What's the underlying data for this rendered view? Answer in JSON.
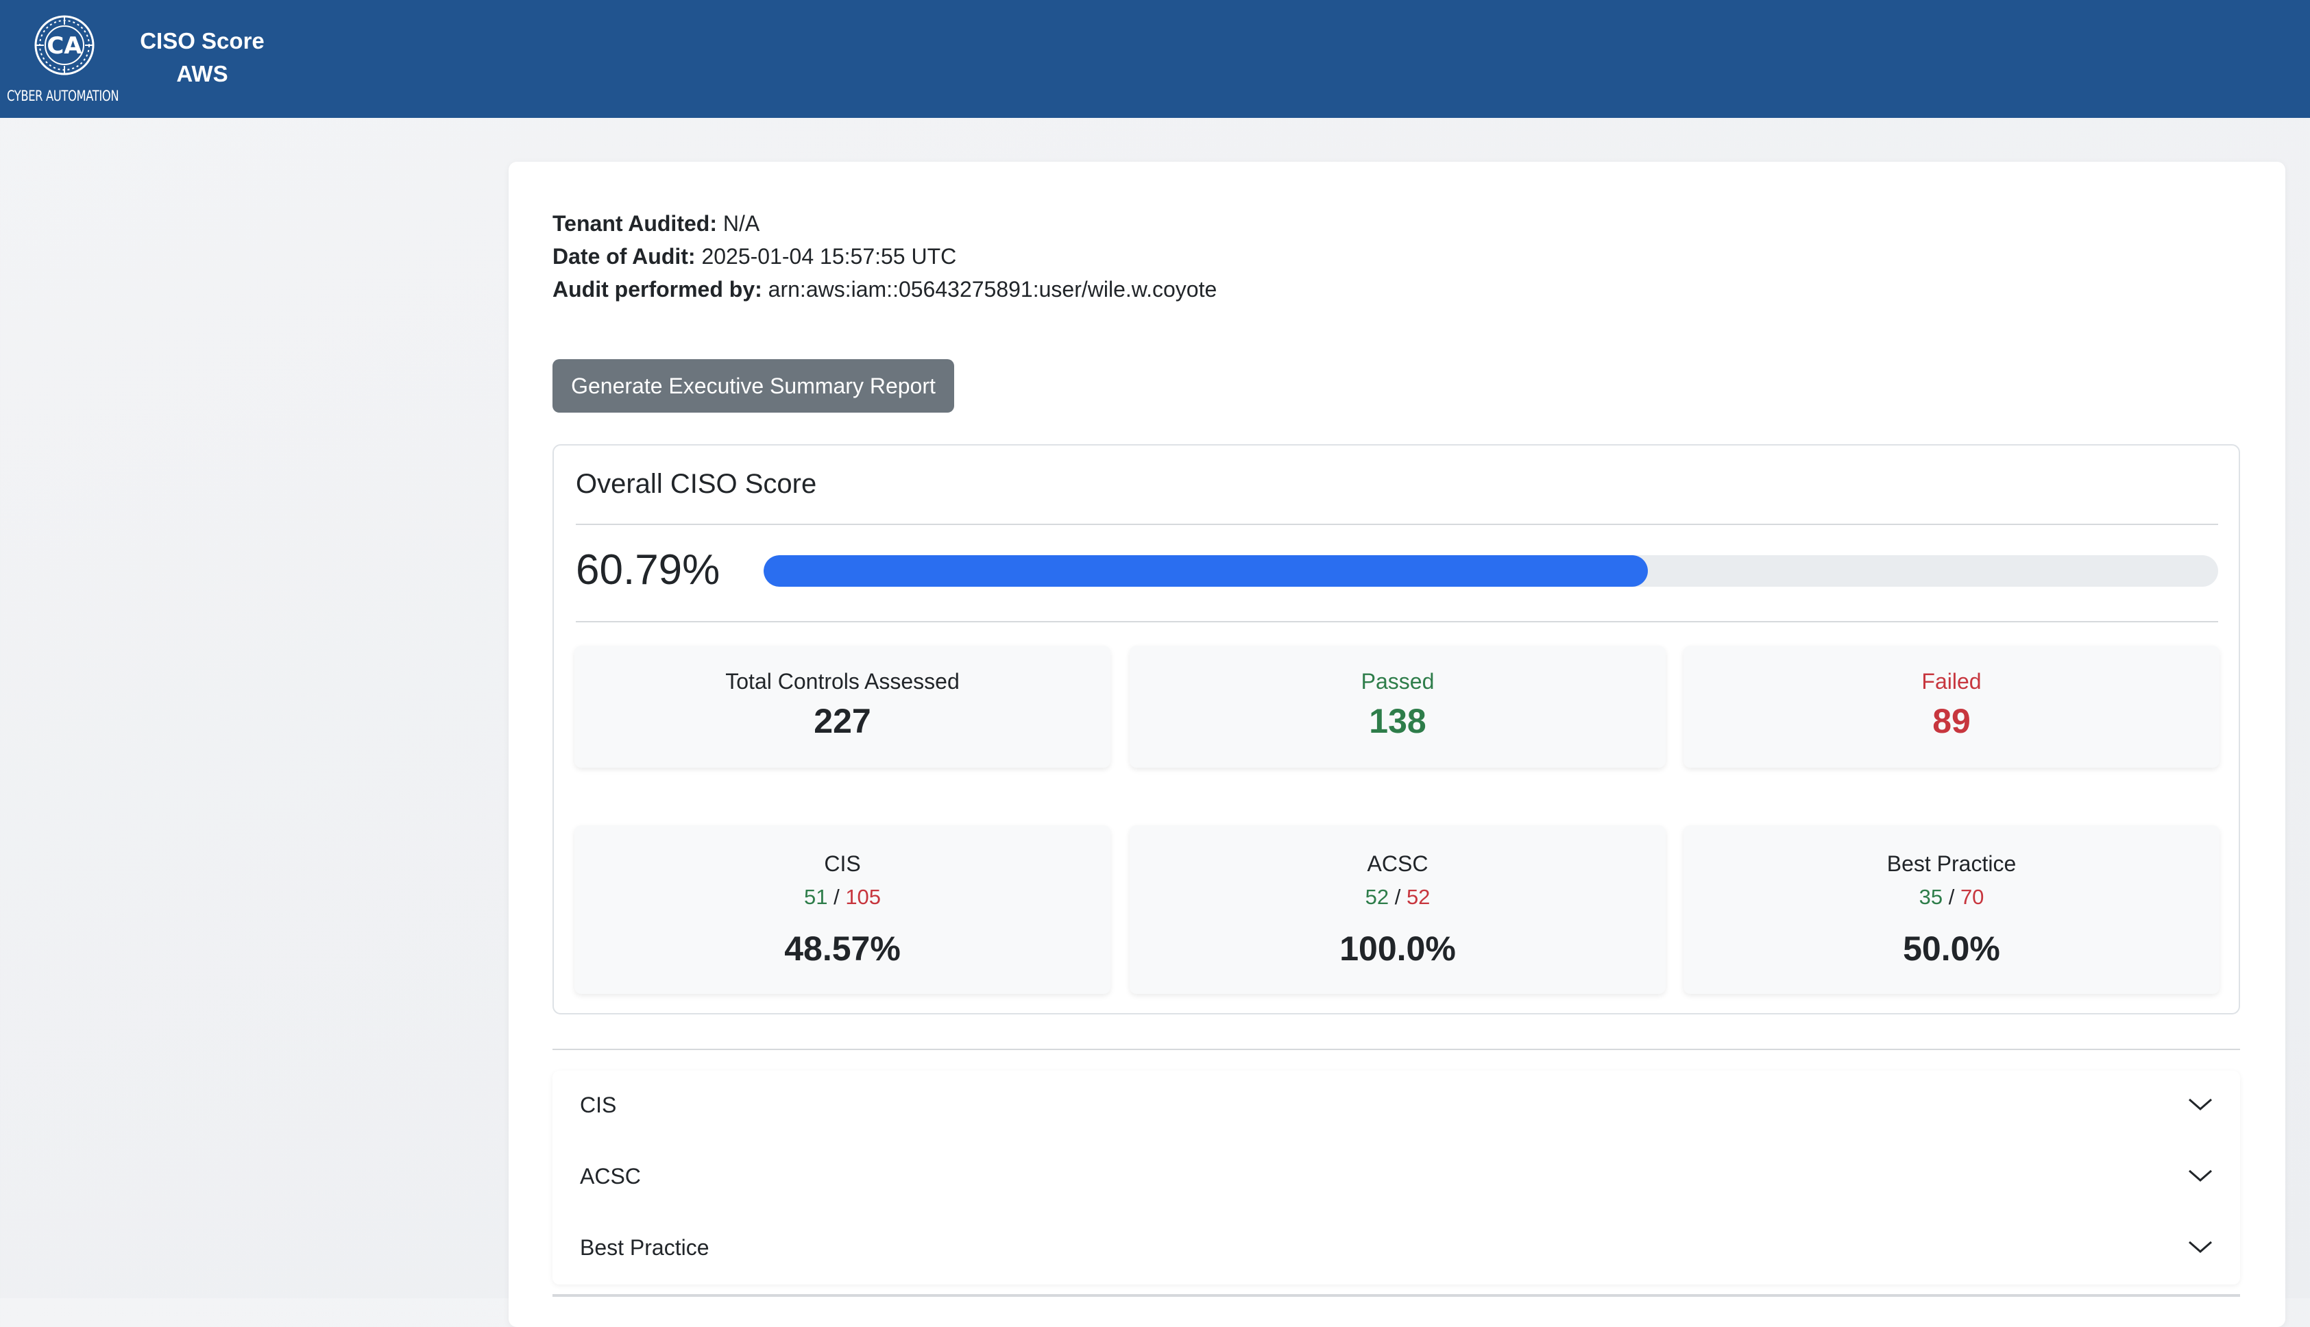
{
  "header": {
    "logo_text": "CYBER AUTOMATION",
    "title_line1": "CISO Score",
    "title_line2": "AWS",
    "bg_color": "#21548f"
  },
  "audit": {
    "tenant_label": "Tenant Audited:",
    "tenant_value": "N/A",
    "date_label": "Date of Audit:",
    "date_value": "2025-01-04 15:57:55 UTC",
    "by_label": "Audit performed by:",
    "by_value": "arn:aws:iam::05643275891:user/wile.w.coyote"
  },
  "actions": {
    "generate_label": "Generate Executive Summary Report"
  },
  "overall": {
    "title": "Overall CISO Score",
    "percent_text": "60.79%",
    "progress_fraction": 0.6079,
    "progress_color": "#2a6ef0"
  },
  "totals": {
    "total_label": "Total Controls Assessed",
    "total_value": "227",
    "passed_label": "Passed",
    "passed_value": "138",
    "failed_label": "Failed",
    "failed_value": "89",
    "pass_color": "#2e7d4a",
    "fail_color": "#c7363e"
  },
  "frameworks": [
    {
      "name": "CIS",
      "passed": "51",
      "total": "105",
      "percent": "48.57%"
    },
    {
      "name": "ACSC",
      "passed": "52",
      "total": "52",
      "percent": "100.0%"
    },
    {
      "name": "Best Practice",
      "passed": "35",
      "total": "70",
      "percent": "50.0%"
    }
  ],
  "ratio_separator": "/",
  "accordion": [
    {
      "label": "CIS",
      "icon": "chevron-down-icon"
    },
    {
      "label": "ACSC",
      "icon": "chevron-down-icon"
    },
    {
      "label": "Best Practice",
      "icon": "chevron-down-icon"
    }
  ]
}
